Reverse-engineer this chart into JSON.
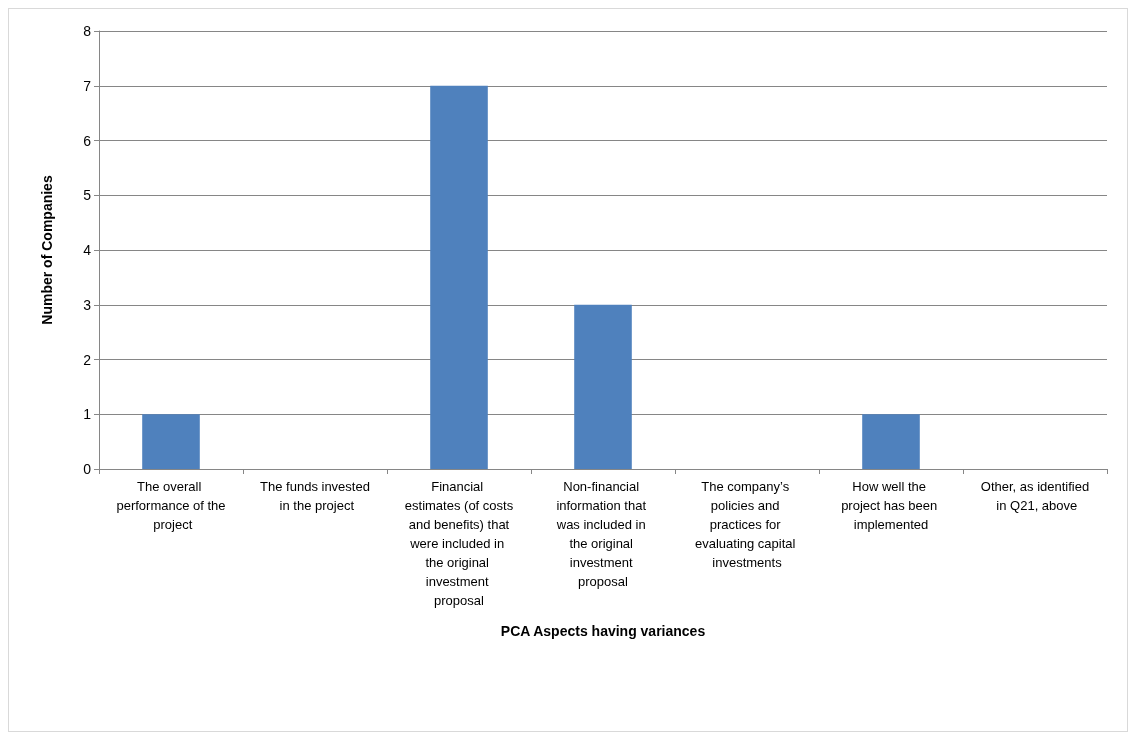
{
  "chart_data": {
    "type": "bar",
    "xlabel": "PCA Aspects having variances",
    "ylabel": "Number of Companies",
    "categories": [
      "The overall performance of the project",
      "The funds invested in the project",
      "Financial estimates (of costs and benefits) that were included in the original investment proposal",
      "Non-financial information that was included in the original investment proposal",
      "The company’s policies and practices for evaluating capital investments",
      "How well the project has been implemented",
      "Other, as identified in Q21, above"
    ],
    "values": [
      1,
      0,
      7,
      3,
      0,
      1,
      0
    ],
    "color": "#4f81bd",
    "ylim": [
      0,
      8
    ],
    "yticks": [
      0,
      1,
      2,
      3,
      4,
      5,
      6,
      7,
      8
    ],
    "grid": "y"
  }
}
